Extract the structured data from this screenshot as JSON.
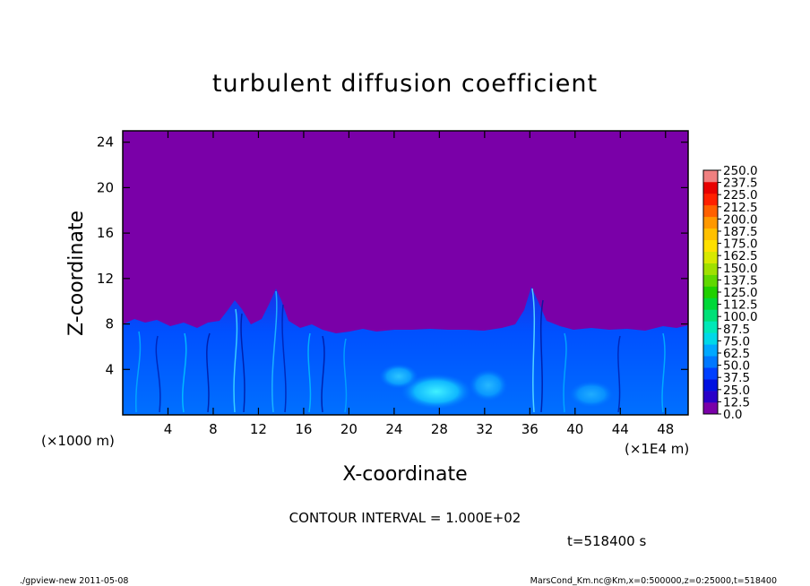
{
  "chart_data": {
    "type": "heatmap",
    "title": "turbulent diffusion coefficient",
    "xlabel": "X-coordinate",
    "ylabel": "Z-coordinate",
    "x_unit_left": "(×1000 m)",
    "x_unit_right": "(×1E4 m)",
    "xlim": [
      0,
      50
    ],
    "ylim": [
      0,
      25
    ],
    "xticks": [
      4,
      8,
      12,
      16,
      20,
      24,
      28,
      32,
      36,
      40,
      44,
      48
    ],
    "yticks": [
      4,
      8,
      12,
      16,
      20,
      24
    ],
    "colorbar": {
      "levels": [
        "0.0",
        "12.5",
        "25.0",
        "37.5",
        "50.0",
        "62.5",
        "75.0",
        "87.5",
        "100.0",
        "112.5",
        "125.0",
        "137.5",
        "150.0",
        "162.5",
        "175.0",
        "187.5",
        "200.0",
        "212.5",
        "225.0",
        "237.5",
        "250.0"
      ],
      "colors": [
        "#7a00a8",
        "#2a00c8",
        "#0010e0",
        "#0040ff",
        "#0078ff",
        "#00a8ff",
        "#00d8e8",
        "#00e8b8",
        "#00e078",
        "#00d838",
        "#20d000",
        "#60d800",
        "#a0e000",
        "#d8e800",
        "#ffe000",
        "#ffc000",
        "#ff9800",
        "#ff6000",
        "#ff2000",
        "#e80000",
        "#f08080"
      ]
    },
    "annotations": {
      "contour_interval": "CONTOUR INTERVAL = 1.000E+02",
      "time": "t=518400 s"
    }
  },
  "footer": {
    "left": "./gpview-new   2011-05-08",
    "right": "MarsCond_Km.nc@Km,x=0:500000,z=0:25000,t=518400"
  }
}
